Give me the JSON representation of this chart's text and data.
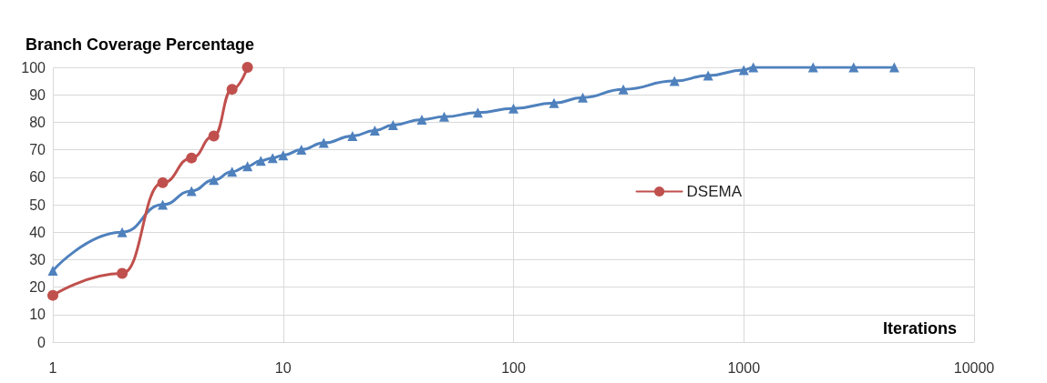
{
  "chart_data": {
    "type": "line",
    "ylabel": "Branch Coverage Percentage",
    "xlabel": "Iterations",
    "log": "x",
    "xlim": [
      1,
      10000
    ],
    "xticks": [
      1,
      10,
      100,
      1000,
      10000
    ],
    "ylim": [
      0,
      100
    ],
    "yticks": [
      0,
      10,
      20,
      30,
      40,
      50,
      60,
      70,
      80,
      90,
      100
    ],
    "grid": true,
    "legend": "right",
    "series": [
      {
        "color": "#4f81bd",
        "marker": "triangle",
        "x": [
          1,
          2,
          3,
          4,
          5,
          6,
          7,
          8,
          9,
          10,
          12,
          15,
          20,
          25,
          30,
          40,
          50,
          70,
          100,
          150,
          200,
          300,
          500,
          700,
          1000,
          1100,
          2000,
          3000,
          4500
        ],
        "values": [
          26,
          40,
          50,
          55,
          59,
          62,
          64,
          66,
          67,
          68,
          70,
          72.5,
          75,
          77,
          79,
          81,
          82,
          83.5,
          85,
          87,
          89,
          92,
          95,
          97,
          99,
          100,
          100,
          100,
          100
        ]
      },
      {
        "name": "DSEMA",
        "color": "#c0504d",
        "marker": "circle",
        "x": [
          1,
          2,
          3,
          4,
          5,
          6,
          7
        ],
        "values": [
          17,
          25,
          58,
          67,
          75,
          92,
          100
        ]
      }
    ]
  }
}
